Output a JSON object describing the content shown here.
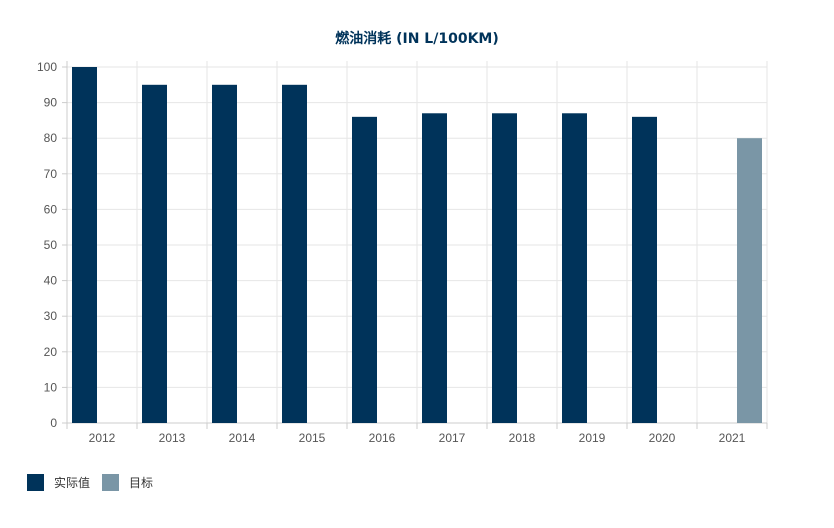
{
  "chart_data": {
    "type": "bar",
    "title": "燃油消耗 (IN L/100KM)",
    "categories": [
      "2012",
      "2013",
      "2014",
      "2015",
      "2016",
      "2017",
      "2018",
      "2019",
      "2020",
      "2021"
    ],
    "series": [
      {
        "name": "实际值",
        "color": "#00335a",
        "values": [
          100,
          95,
          95,
          95,
          86,
          87,
          87,
          87,
          86,
          null
        ]
      },
      {
        "name": "目标",
        "color": "#7a96a6",
        "values": [
          null,
          null,
          null,
          null,
          null,
          null,
          null,
          null,
          null,
          80
        ]
      }
    ],
    "ylim": [
      0,
      100
    ],
    "yticks": [
      0,
      10,
      20,
      30,
      40,
      50,
      60,
      70,
      80,
      90,
      100
    ],
    "grid": true,
    "legend_position": "bottom-left"
  }
}
